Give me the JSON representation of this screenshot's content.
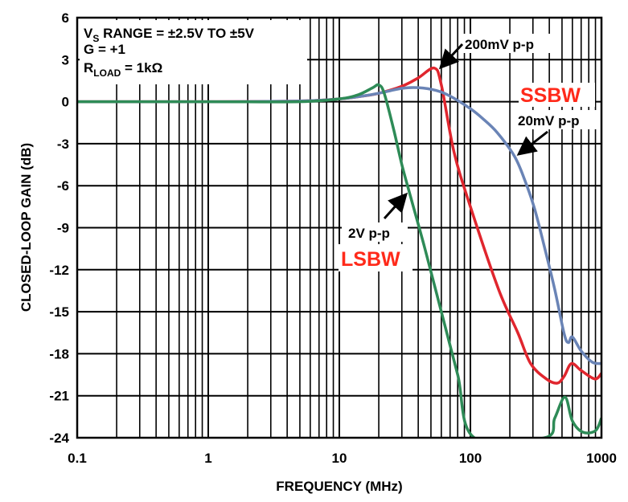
{
  "chart_data": {
    "type": "line",
    "xlabel": "FREQUENCY (MHz)",
    "ylabel": "CLOSED-LOOP GAIN (dB)",
    "xscale": "log",
    "xlim": [
      0.1,
      1000
    ],
    "ylim": [
      -24,
      6
    ],
    "grid": true,
    "x_ticks": [
      "0.1",
      "1",
      "10",
      "100",
      "1000"
    ],
    "y_ticks": [
      "6",
      "3",
      "0",
      "-3",
      "-6",
      "-9",
      "-12",
      "-15",
      "-18",
      "-21",
      "-24"
    ],
    "conditions": {
      "line1_main": "V",
      "line1_sub": "S",
      "line1_rest": " RANGE = ±2.5V TO ±5V",
      "line2": "G = +1",
      "line3_main": "R",
      "line3_sub": "LOAD",
      "line3_rest": " = 1kΩ"
    },
    "annotations": {
      "red": "200mV p-p",
      "blue": "20mV p-p",
      "green": "2V p-p",
      "ssbw": "SSBW",
      "lsbw": "LSBW"
    },
    "series": [
      {
        "color": "#e0262e",
        "x": [
          0.1,
          1,
          5,
          10,
          15,
          20,
          30,
          40,
          53,
          60,
          75,
          100,
          164,
          230,
          288,
          380,
          460,
          520,
          590,
          700,
          890,
          1000
        ],
        "y": [
          0,
          0,
          0.05,
          0.2,
          0.4,
          0.6,
          1.1,
          1.7,
          2.4,
          1.2,
          -3.6,
          -7.5,
          -13.4,
          -16.5,
          -18.7,
          -19.8,
          -20.1,
          -19.6,
          -18.7,
          -19.2,
          -19.8,
          -19.4
        ]
      },
      {
        "color": "#6a84b6",
        "x": [
          0.1,
          1,
          5,
          10,
          15,
          20,
          30,
          40,
          55,
          70,
          100,
          124,
          160,
          217,
          260,
          310,
          370,
          440,
          520,
          560,
          600,
          700,
          850,
          1000
        ],
        "y": [
          0,
          0,
          0.05,
          0.2,
          0.4,
          0.6,
          0.95,
          1.0,
          0.8,
          0.4,
          -0.5,
          -1.2,
          -2.2,
          -3.9,
          -5.6,
          -7.7,
          -10.5,
          -13.4,
          -16.6,
          -17.2,
          -16.8,
          -17.8,
          -18.6,
          -18.7
        ]
      },
      {
        "color": "#2e8b57",
        "x": [
          0.1,
          1,
          5,
          10,
          14,
          18,
          20,
          22,
          26,
          30,
          35,
          45,
          60,
          80,
          107,
          370,
          440,
          527,
          600,
          720,
          900,
          1000
        ],
        "y": [
          0,
          0,
          0,
          0.2,
          0.5,
          1.0,
          1.2,
          0.6,
          -2.0,
          -4.5,
          -6.8,
          -10.5,
          -15,
          -19.5,
          -24,
          -24,
          -22.6,
          -21.1,
          -22.8,
          -23.6,
          -23.5,
          -22.6
        ]
      }
    ]
  }
}
